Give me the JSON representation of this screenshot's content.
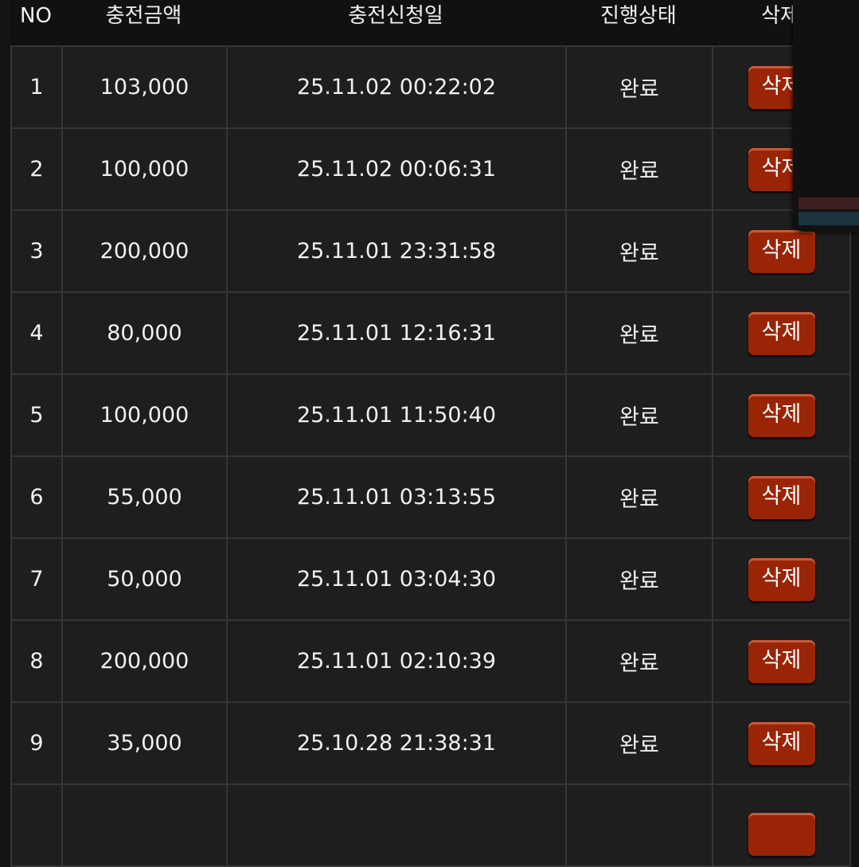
{
  "headers": {
    "no": "NO",
    "amount": "충전금액",
    "date": "충전신청일",
    "status": "진행상태",
    "delete": "삭제"
  },
  "rows": [
    {
      "no": "1",
      "amount": "103,000",
      "date": "25.11.02 00:22:02",
      "status": "완료",
      "action": "삭제"
    },
    {
      "no": "2",
      "amount": "100,000",
      "date": "25.11.02 00:06:31",
      "status": "완료",
      "action": "삭제"
    },
    {
      "no": "3",
      "amount": "200,000",
      "date": "25.11.01 23:31:58",
      "status": "완료",
      "action": "삭제"
    },
    {
      "no": "4",
      "amount": "80,000",
      "date": "25.11.01 12:16:31",
      "status": "완료",
      "action": "삭제"
    },
    {
      "no": "5",
      "amount": "100,000",
      "date": "25.11.01 11:50:40",
      "status": "완료",
      "action": "삭제"
    },
    {
      "no": "6",
      "amount": "55,000",
      "date": "25.11.01 03:13:55",
      "status": "완료",
      "action": "삭제"
    },
    {
      "no": "7",
      "amount": "50,000",
      "date": "25.11.01 03:04:30",
      "status": "완료",
      "action": "삭제"
    },
    {
      "no": "8",
      "amount": "200,000",
      "date": "25.11.01 02:10:39",
      "status": "완료",
      "action": "삭제"
    },
    {
      "no": "9",
      "amount": "35,000",
      "date": "25.10.28 21:38:31",
      "status": "완료",
      "action": "삭제"
    },
    {
      "no": "",
      "amount": "",
      "date": "",
      "status": "",
      "action": ""
    }
  ],
  "colors": {
    "delete_button": "#9a2406",
    "cell_bg": "#1e1e1e",
    "header_bg": "#111111"
  }
}
